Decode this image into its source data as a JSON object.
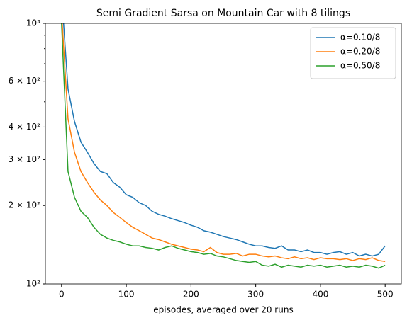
{
  "chart_data": {
    "type": "line",
    "title": "Semi Gradient Sarsa on Mountain Car with 8 tilings",
    "x_label": "episodes, averaged over 20 runs",
    "x": [
      0,
      10,
      20,
      30,
      40,
      50,
      60,
      70,
      80,
      90,
      100,
      110,
      120,
      130,
      140,
      150,
      160,
      170,
      180,
      190,
      200,
      210,
      220,
      230,
      240,
      250,
      260,
      270,
      280,
      290,
      300,
      310,
      320,
      330,
      340,
      350,
      360,
      370,
      380,
      390,
      400,
      410,
      420,
      430,
      440,
      450,
      460,
      470,
      480,
      490,
      500
    ],
    "series": [
      {
        "name": "α=0.10/8",
        "color": "#1f77b4",
        "values": [
          1300,
          560,
          420,
          350,
          320,
          290,
          270,
          265,
          245,
          235,
          220,
          215,
          205,
          200,
          190,
          185,
          182,
          178,
          175,
          172,
          168,
          165,
          160,
          158,
          155,
          152,
          150,
          148,
          145,
          142,
          140,
          140,
          138,
          137,
          140,
          135,
          135,
          133,
          135,
          132,
          132,
          130,
          132,
          133,
          130,
          132,
          128,
          130,
          128,
          130,
          140
        ]
      },
      {
        "name": "α=0.20/8",
        "color": "#ff7f0e",
        "values": [
          1100,
          430,
          320,
          270,
          245,
          225,
          210,
          200,
          188,
          180,
          172,
          165,
          160,
          155,
          150,
          148,
          145,
          142,
          140,
          138,
          136,
          135,
          133,
          138,
          132,
          130,
          130,
          131,
          128,
          130,
          130,
          128,
          127,
          128,
          126,
          125,
          127,
          125,
          126,
          124,
          126,
          125,
          125,
          124,
          125,
          123,
          125,
          124,
          126,
          123,
          122
        ]
      },
      {
        "name": "α=0.50/8",
        "color": "#2ca02c",
        "values": [
          1000,
          270,
          215,
          190,
          180,
          165,
          155,
          150,
          147,
          145,
          142,
          140,
          140,
          138,
          137,
          135,
          138,
          140,
          137,
          135,
          133,
          132,
          130,
          131,
          128,
          127,
          125,
          123,
          122,
          121,
          122,
          118,
          117,
          119,
          116,
          118,
          117,
          116,
          118,
          117,
          118,
          116,
          117,
          118,
          116,
          117,
          116,
          118,
          117,
          115,
          118
        ]
      }
    ],
    "xlim": [
      -25,
      525
    ],
    "xticks": [
      0,
      100,
      200,
      300,
      400,
      500
    ],
    "ylim": [
      100,
      1000
    ],
    "log_scale_y": true,
    "yticks": [
      {
        "value": 100,
        "label": "10²"
      },
      {
        "value": 200,
        "label": "2 × 10²"
      },
      {
        "value": 300,
        "label": "3 × 10²"
      },
      {
        "value": 400,
        "label": "4 × 10²"
      },
      {
        "value": 600,
        "label": "6 × 10²"
      },
      {
        "value": 1000,
        "label": "10³"
      }
    ],
    "yminor_ticks": [
      500,
      700,
      800,
      900
    ],
    "legend": "upper right"
  }
}
